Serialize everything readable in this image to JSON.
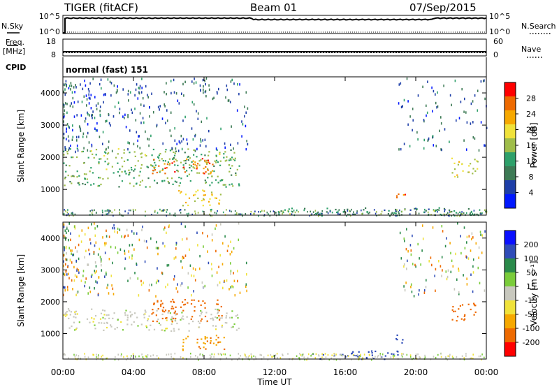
{
  "header": {
    "station": "TIGER (fitACF)",
    "beam": "Beam 01",
    "date": "07/Sep/2015"
  },
  "panels": {
    "nsky": {
      "label": "N.Sky",
      "ticks": [
        "10^5",
        "10^0"
      ]
    },
    "nsearch": {
      "label": "N.Search",
      "ticks": [
        "10^5",
        "10^0"
      ]
    },
    "freq": {
      "label": "Freq.",
      "unit": "[MHz]",
      "ticks": [
        "18",
        "8"
      ]
    },
    "nave": {
      "label": "Nave",
      "ticks": [
        "60",
        "0"
      ]
    },
    "cpid": {
      "label": "CPID",
      "text": "normal (fast) 151"
    }
  },
  "chart_data": [
    {
      "type": "heatmap",
      "name": "Power",
      "xlabel": "Time UT",
      "ylabel": "Slant Range [km]",
      "xlim": [
        "00:00",
        "24:00"
      ],
      "ylim": [
        200,
        4500
      ],
      "x_ticks": [
        "00:00",
        "04:00",
        "08:00",
        "12:00",
        "16:00",
        "20:00",
        "00:00"
      ],
      "y_ticks": [
        1000,
        2000,
        3000,
        4000
      ],
      "colorbar": {
        "label": "Power [dB]",
        "ticks": [
          4,
          8,
          12,
          16,
          20,
          24,
          28
        ],
        "range": [
          0,
          32
        ],
        "colors": [
          "#0018ff",
          "#1e3fa8",
          "#3d7a55",
          "#2ea06a",
          "#9fbd4a",
          "#f0e23a",
          "#f6a800",
          "#ee6a00",
          "#ff0000"
        ]
      },
      "regions": [
        {
          "t": [
            0.0,
            10.0
          ],
          "r": [
            1100,
            2300
          ],
          "level": 14
        },
        {
          "t": [
            5.0,
            8.5
          ],
          "r": [
            1500,
            2000
          ],
          "level": 27
        },
        {
          "t": [
            6.5,
            9.2
          ],
          "r": [
            500,
            1000
          ],
          "level": 20
        },
        {
          "t": [
            18.8,
            19.5
          ],
          "r": [
            700,
            1000
          ],
          "level": 26
        },
        {
          "t": [
            12.0,
            23.5
          ],
          "r": [
            200,
            450
          ],
          "level": 10
        },
        {
          "t": [
            22.0,
            23.5
          ],
          "r": [
            1400,
            2000
          ],
          "level": 18
        }
      ]
    },
    {
      "type": "heatmap",
      "name": "Velocity",
      "xlabel": "Time UT",
      "ylabel": "Slant Range [km]",
      "xlim": [
        "00:00",
        "24:00"
      ],
      "ylim": [
        200,
        4500
      ],
      "x_ticks": [
        "00:00",
        "04:00",
        "08:00",
        "12:00",
        "16:00",
        "20:00",
        "00:00"
      ],
      "y_ticks": [
        1000,
        2000,
        3000,
        4000
      ],
      "colorbar": {
        "label": "Velocity [m s⁻¹]",
        "ticks": [
          200,
          100,
          50,
          15,
          -15,
          -50,
          -100,
          -200
        ],
        "colors": [
          "#0a10ff",
          "#2f4cb8",
          "#2a8a4a",
          "#7acc3a",
          "#c8c8be",
          "#f0e23a",
          "#f6a800",
          "#ee6a00",
          "#ff0000"
        ]
      },
      "regions": [
        {
          "t": [
            0.0,
            10.0
          ],
          "r": [
            1100,
            1800
          ],
          "level": 0
        },
        {
          "t": [
            5.0,
            9.0
          ],
          "r": [
            1400,
            2100
          ],
          "level": -180
        },
        {
          "t": [
            6.5,
            9.2
          ],
          "r": [
            500,
            1000
          ],
          "level": -90
        },
        {
          "t": [
            18.8,
            19.5
          ],
          "r": [
            700,
            1000
          ],
          "level": 180
        },
        {
          "t": [
            14.0,
            19.0
          ],
          "r": [
            200,
            500
          ],
          "level": 120
        },
        {
          "t": [
            22.0,
            23.5
          ],
          "r": [
            1400,
            2000
          ],
          "level": -150
        }
      ]
    }
  ]
}
